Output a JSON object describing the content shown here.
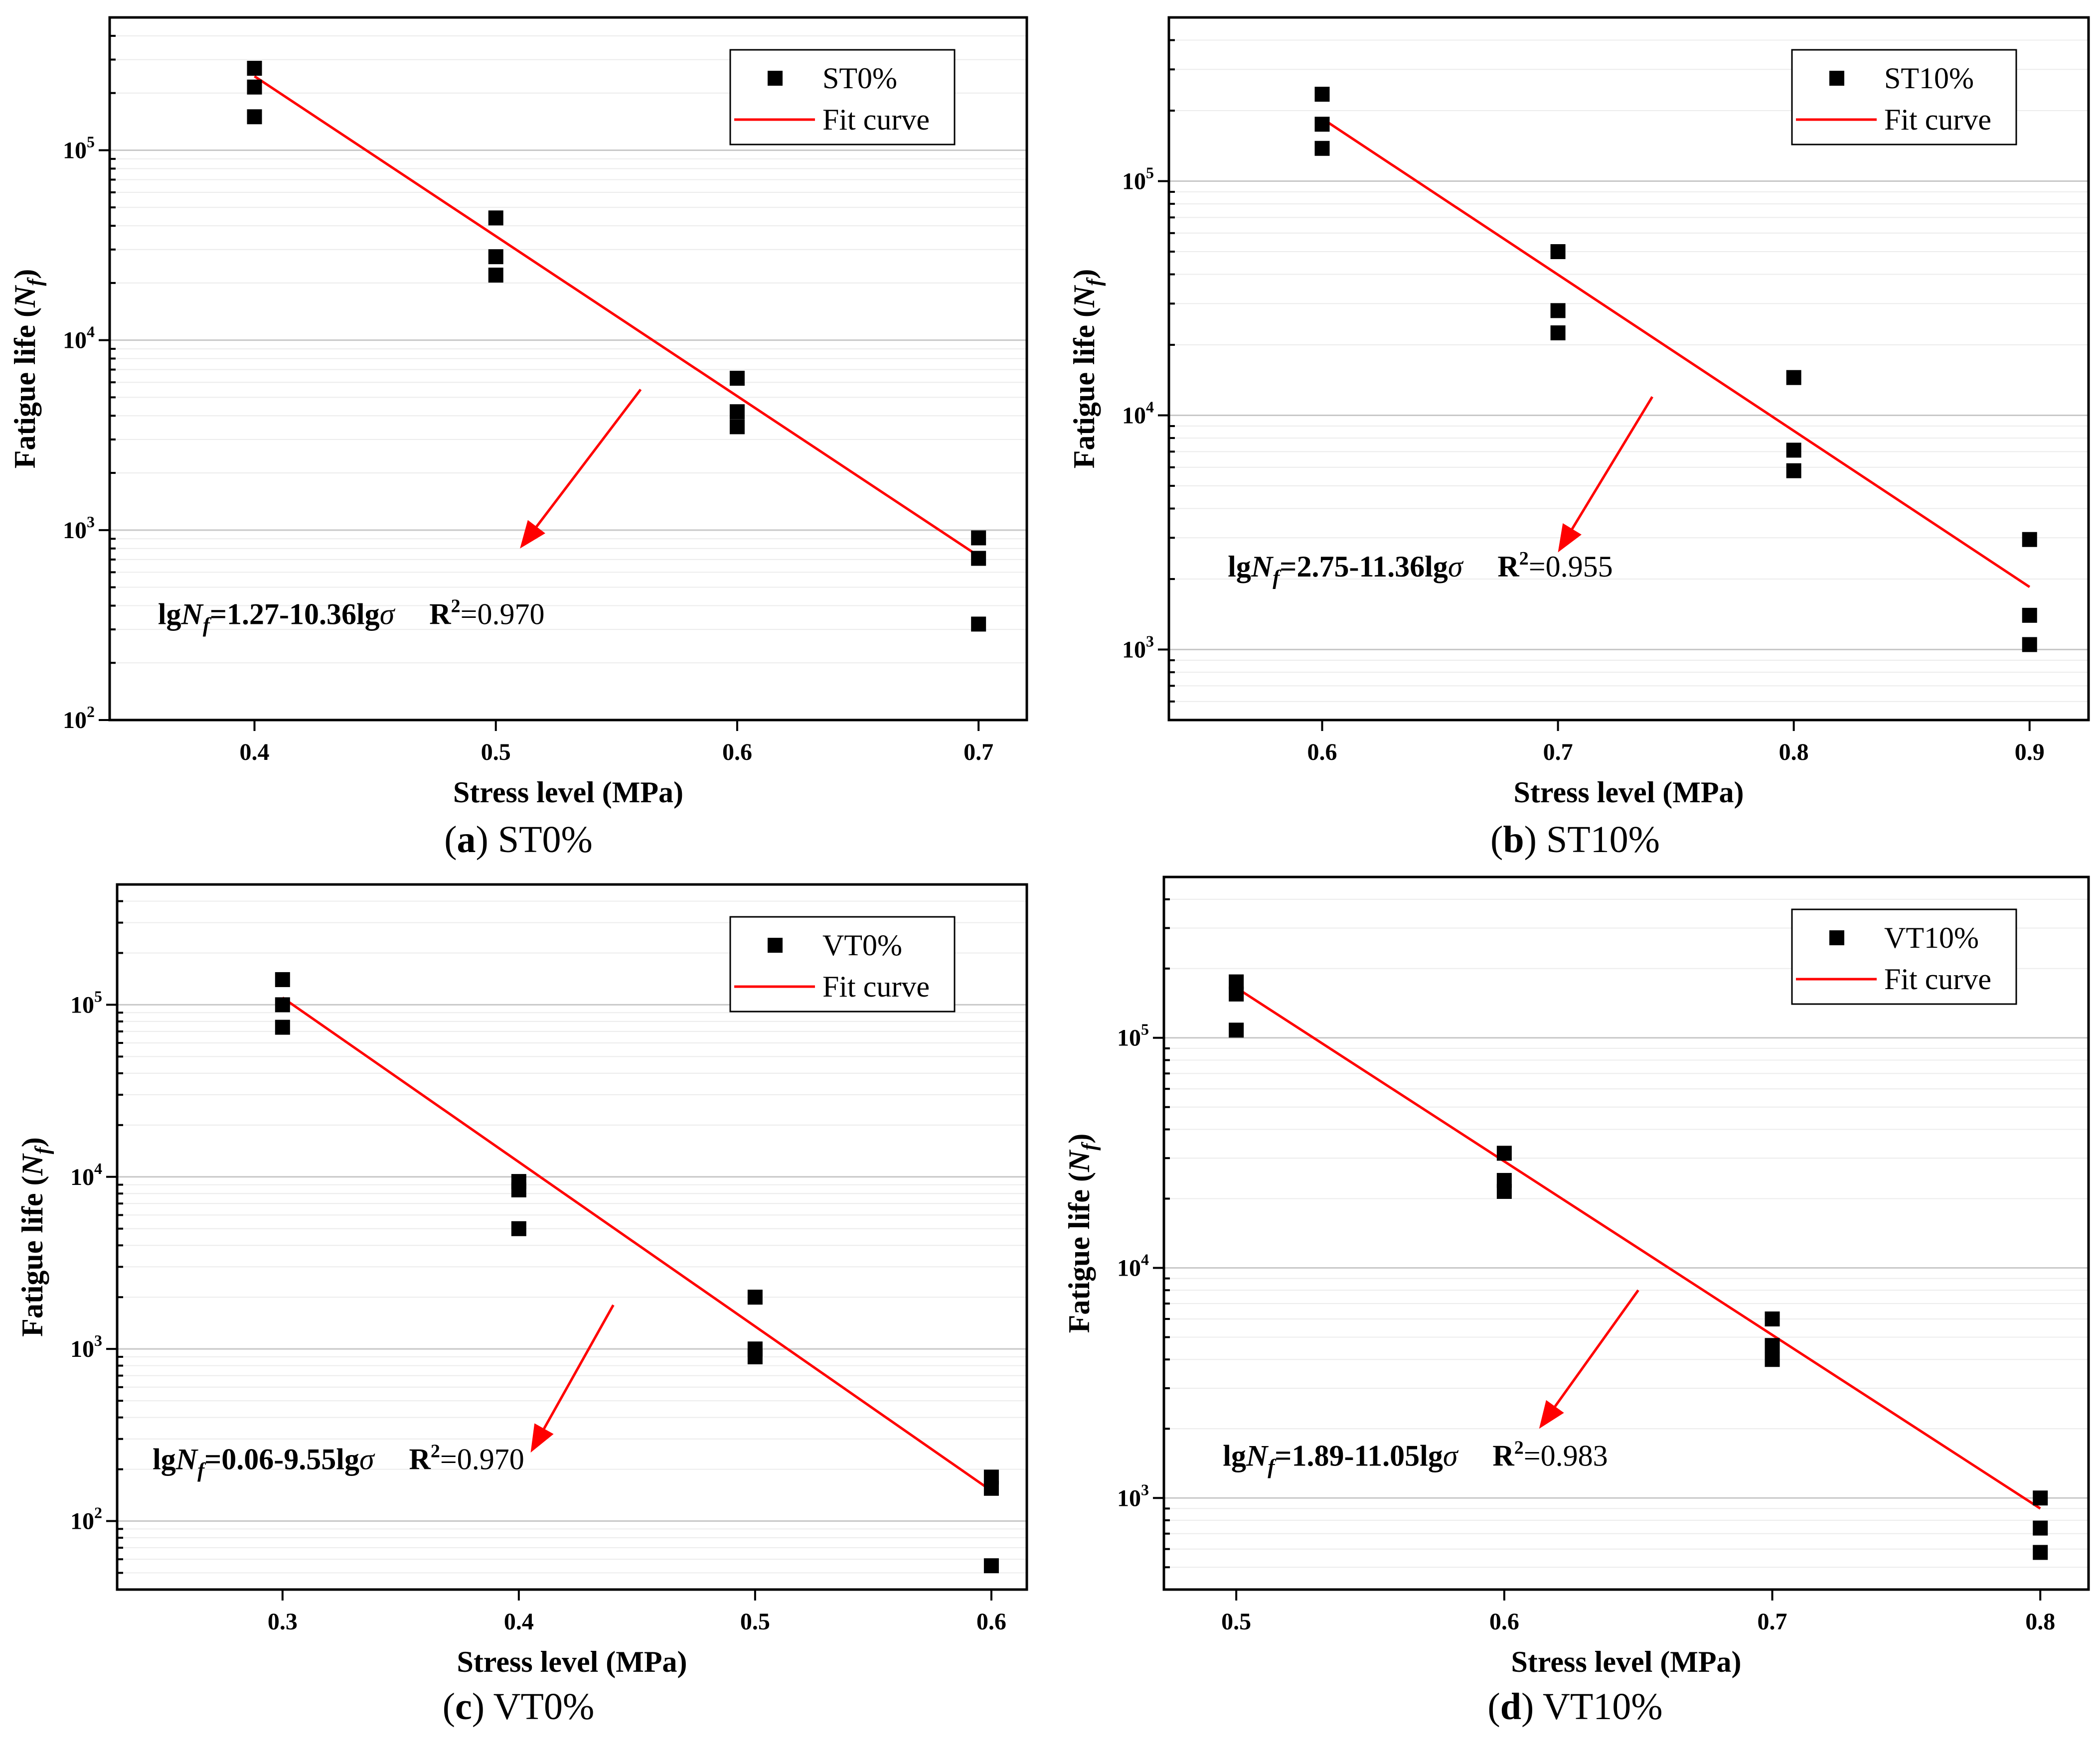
{
  "chart_data": [
    {
      "type": "scatter",
      "caption_letter": "a",
      "caption_text": "ST0%",
      "xlabel": "Stress level (MPa)",
      "ylabel_main": "Fatigue life (",
      "ylabel_var": "N",
      "ylabel_sub": "f",
      "ylabel_close": ")",
      "y_scale": "log",
      "xlim": [
        0.34,
        0.72
      ],
      "ylim": [
        100,
        500000
      ],
      "x_ticks": [
        0.4,
        0.5,
        0.6,
        0.7
      ],
      "x_tick_labels": [
        "0.4",
        "0.5",
        "0.6",
        "0.7"
      ],
      "y_ticks": [
        100,
        1000,
        10000,
        100000
      ],
      "y_tick_base": [
        "10",
        "10",
        "10",
        "10"
      ],
      "y_tick_exp": [
        "2",
        "3",
        "4",
        "5"
      ],
      "grid": "horizontal",
      "legend_position": "top-right",
      "series": [
        {
          "name": "ST0%",
          "x": [
            0.4,
            0.4,
            0.4,
            0.5,
            0.5,
            0.5,
            0.6,
            0.6,
            0.6,
            0.7,
            0.7,
            0.7
          ],
          "y": [
            270000,
            215000,
            150000,
            44000,
            27500,
            22000,
            6300,
            4200,
            3500,
            910,
            710,
            320
          ]
        },
        {
          "name": "Fit curve",
          "x": [
            0.4,
            0.7
          ],
          "y": [
            245000,
            730
          ]
        }
      ],
      "equation": {
        "prefix": "lg",
        "var": "N",
        "sub": "f",
        "body": "=1.27-10.36lg",
        "sigma": "σ",
        "r_label": "R",
        "r_exp": "2",
        "r_value": "=0.970"
      },
      "arrow": {
        "from": [
          0.56,
          5500
        ],
        "to": [
          0.51,
          800
        ]
      },
      "equation_anchor": [
        0.36,
        320
      ]
    },
    {
      "type": "scatter",
      "caption_letter": "b",
      "caption_text": "ST10%",
      "xlabel": "Stress level (MPa)",
      "ylabel_main": "Fatigue life (",
      "ylabel_var": "N",
      "ylabel_sub": "f",
      "ylabel_close": ")",
      "y_scale": "log",
      "xlim": [
        0.535,
        0.925
      ],
      "ylim": [
        500,
        500000
      ],
      "x_ticks": [
        0.6,
        0.7,
        0.8,
        0.9
      ],
      "x_tick_labels": [
        "0.6",
        "0.7",
        "0.8",
        "0.9"
      ],
      "y_ticks": [
        1000,
        10000,
        100000
      ],
      "y_tick_base": [
        "10",
        "10",
        "10"
      ],
      "y_tick_exp": [
        "3",
        "4",
        "5"
      ],
      "grid": "horizontal",
      "legend_position": "top-right",
      "series": [
        {
          "name": "ST10%",
          "x": [
            0.6,
            0.6,
            0.6,
            0.7,
            0.7,
            0.7,
            0.8,
            0.8,
            0.8,
            0.9,
            0.9,
            0.9
          ],
          "y": [
            235000,
            175000,
            138000,
            50000,
            28000,
            22500,
            14500,
            7100,
            5800,
            2950,
            1400,
            1050
          ]
        },
        {
          "name": "Fit curve",
          "x": [
            0.6,
            0.9
          ],
          "y": [
            185000,
            1850
          ]
        }
      ],
      "equation": {
        "prefix": "lg",
        "var": "N",
        "sub": "f",
        "body": "=2.75-11.36lg",
        "sigma": "σ",
        "r_label": "R",
        "r_exp": "2",
        "r_value": "=0.955"
      },
      "arrow": {
        "from": [
          0.74,
          12000
        ],
        "to": [
          0.7,
          2600
        ]
      },
      "equation_anchor": [
        0.56,
        2050
      ]
    },
    {
      "type": "scatter",
      "caption_letter": "c",
      "caption_text": "VT0%",
      "xlabel": "Stress level (MPa)",
      "ylabel_main": "Fatigue life (",
      "ylabel_var": "N",
      "ylabel_sub": "f",
      "ylabel_close": ")",
      "y_scale": "log",
      "xlim": [
        0.23,
        0.615
      ],
      "ylim": [
        40,
        500000
      ],
      "x_ticks": [
        0.3,
        0.4,
        0.5,
        0.6
      ],
      "x_tick_labels": [
        "0.3",
        "0.4",
        "0.5",
        "0.6"
      ],
      "y_ticks": [
        100,
        1000,
        10000,
        100000
      ],
      "y_tick_base": [
        "10",
        "10",
        "10",
        "10"
      ],
      "y_tick_exp": [
        "2",
        "3",
        "4",
        "5"
      ],
      "grid": "horizontal",
      "legend_position": "top-right",
      "series": [
        {
          "name": "VT0%",
          "x": [
            0.3,
            0.3,
            0.3,
            0.4,
            0.4,
            0.4,
            0.5,
            0.5,
            0.5,
            0.6,
            0.6,
            0.6
          ],
          "y": [
            140000,
            100000,
            74000,
            9400,
            8400,
            5000,
            2000,
            1000,
            900,
            180,
            155,
            55
          ]
        },
        {
          "name": "Fit curve",
          "x": [
            0.3,
            0.6
          ],
          "y": [
            110000,
            150
          ]
        }
      ],
      "equation": {
        "prefix": "lg",
        "var": "N",
        "sub": "f",
        "body": "=0.06-9.55lg",
        "sigma": "σ",
        "r_label": "R",
        "r_exp": "2",
        "r_value": "=0.970"
      },
      "arrow": {
        "from": [
          0.44,
          1800
        ],
        "to": [
          0.405,
          250
        ]
      },
      "equation_anchor": [
        0.245,
        200
      ]
    },
    {
      "type": "scatter",
      "caption_letter": "d",
      "caption_text": "VT10%",
      "xlabel": "Stress level (MPa)",
      "ylabel_main": "Fatigue life (",
      "ylabel_var": "N",
      "ylabel_sub": "f",
      "ylabel_close": ")",
      "y_scale": "log",
      "xlim": [
        0.473,
        0.818
      ],
      "ylim": [
        400,
        500000
      ],
      "x_ticks": [
        0.5,
        0.6,
        0.7,
        0.8
      ],
      "x_tick_labels": [
        "0.5",
        "0.6",
        "0.7",
        "0.8"
      ],
      "y_ticks": [
        1000,
        10000,
        100000
      ],
      "y_tick_base": [
        "10",
        "10",
        "10"
      ],
      "y_tick_exp": [
        "3",
        "4",
        "5"
      ],
      "grid": "horizontal",
      "legend_position": "top-right",
      "series": [
        {
          "name": "VT10%",
          "x": [
            0.5,
            0.5,
            0.5,
            0.6,
            0.6,
            0.6,
            0.7,
            0.7,
            0.7,
            0.8,
            0.8,
            0.8
          ],
          "y": [
            175000,
            155000,
            108000,
            31500,
            24000,
            21500,
            6000,
            4600,
            4000,
            1000,
            740,
            580
          ]
        },
        {
          "name": "Fit curve",
          "x": [
            0.5,
            0.8
          ],
          "y": [
            165000,
            900
          ]
        }
      ],
      "equation": {
        "prefix": "lg",
        "var": "N",
        "sub": "f",
        "body": "=1.89-11.05lg",
        "sigma": "σ",
        "r_label": "R",
        "r_exp": "2",
        "r_value": "=0.983"
      },
      "arrow": {
        "from": [
          0.65,
          8000
        ],
        "to": [
          0.613,
          2000
        ]
      },
      "equation_anchor": [
        0.495,
        1380
      ]
    }
  ],
  "colors": {
    "points": "#000000",
    "fit": "#ff0000",
    "arrow": "#ff0000",
    "grid_major": "#c8c8c8",
    "grid_minor": "#ececec"
  }
}
